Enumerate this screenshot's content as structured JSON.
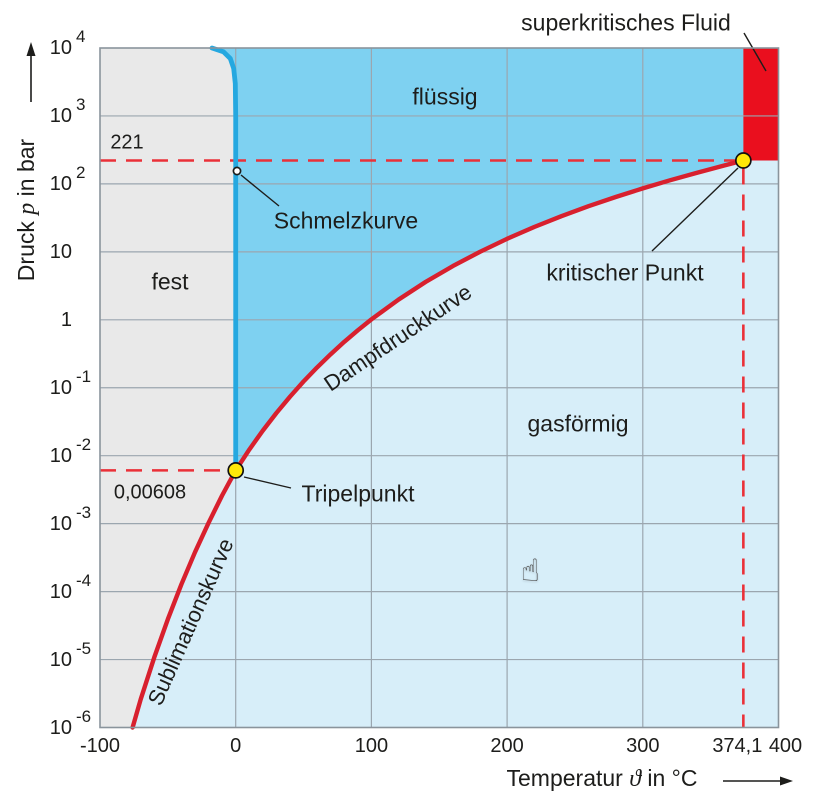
{
  "colors": {
    "solid_region": "#e9e9e9",
    "liquid_region": "#7ed1f1",
    "gas_region": "#d7eef9",
    "supercritical_region": "#ea0f1e",
    "melting_curve": "#25a8e0",
    "red_curve": "#d8202e",
    "dashed_reference": "#ea3038",
    "point_fill": "#ffe808",
    "grid": "#9ba6af",
    "plot_border": "#8a949c",
    "text": "#1d1d1b"
  },
  "chart_data": {
    "type": "line",
    "description_regions": [
      {
        "key": "solid",
        "label": "fest"
      },
      {
        "key": "liquid",
        "label": "flüssig"
      },
      {
        "key": "gas",
        "label": "gasförmig"
      },
      {
        "key": "supercritical",
        "label": "superkritisches Fluid"
      }
    ],
    "x_axis": {
      "label_pre": "Temperatur ",
      "label_var": "ϑ",
      "label_post": " in °C",
      "min": -100,
      "max": 400,
      "ticks": [
        {
          "v": -100,
          "label": "-100",
          "dx": 0
        },
        {
          "v": 0,
          "label": "0",
          "dx": 0
        },
        {
          "v": 100,
          "label": "100",
          "dx": 0
        },
        {
          "v": 200,
          "label": "200",
          "dx": 0
        },
        {
          "v": 300,
          "label": "300",
          "dx": 0
        },
        {
          "v": 374.1,
          "label": "374,1",
          "dx": -6
        },
        {
          "v": 400,
          "label": "400",
          "dx": 7
        }
      ],
      "grid": [
        0,
        100,
        200,
        300
      ]
    },
    "y_axis": {
      "label_pre": "Druck ",
      "label_var": "p",
      "label_post": " in bar",
      "scale": "log",
      "min_exp": -6,
      "max_exp": 4,
      "ticks": [
        {
          "e": 4,
          "base": "10",
          "exp": "4"
        },
        {
          "e": 3,
          "base": "10",
          "exp": "3"
        },
        {
          "e": 2,
          "base": "10",
          "exp": "2"
        },
        {
          "e": 1,
          "base": "10",
          "exp": ""
        },
        {
          "e": 0,
          "base": "1",
          "exp": ""
        },
        {
          "e": -1,
          "base": "10",
          "exp": "-1"
        },
        {
          "e": -2,
          "base": "10",
          "exp": "-2"
        },
        {
          "e": -3,
          "base": "10",
          "exp": "-3"
        },
        {
          "e": -4,
          "base": "10",
          "exp": "-4"
        },
        {
          "e": -5,
          "base": "10",
          "exp": "-5"
        },
        {
          "e": -6,
          "base": "10",
          "exp": "-6"
        }
      ],
      "grid_exps": [
        3,
        2,
        1,
        0,
        -1,
        -2,
        -3,
        -4,
        -5
      ]
    },
    "series": [
      {
        "key": "melting",
        "name": "Schmelzkurve",
        "color": "#25a8e0",
        "points": [
          [
            0.01,
            0.00608
          ],
          [
            0,
            0.1
          ],
          [
            0,
            10
          ],
          [
            0,
            1000
          ],
          [
            -0.3,
            3000
          ],
          [
            -1.5,
            5000
          ],
          [
            -4,
            7000
          ],
          [
            -9,
            8800
          ],
          [
            -17.5,
            10000
          ]
        ]
      },
      {
        "key": "vapor",
        "name": "Dampfdruckkurve",
        "color": "#d8202e",
        "points": [
          [
            0.01,
            0.00608
          ],
          [
            10,
            0.01228
          ],
          [
            20,
            0.02339
          ],
          [
            30,
            0.04246
          ],
          [
            40,
            0.07384
          ],
          [
            50,
            0.12349
          ],
          [
            60,
            0.19932
          ],
          [
            70,
            0.31176
          ],
          [
            80,
            0.47373
          ],
          [
            90,
            0.70117
          ],
          [
            100,
            1.0133
          ],
          [
            120,
            1.9854
          ],
          [
            140,
            3.6136
          ],
          [
            160,
            6.1766
          ],
          [
            180,
            10.019
          ],
          [
            200,
            15.537
          ],
          [
            220,
            23.178
          ],
          [
            240,
            33.447
          ],
          [
            260,
            46.894
          ],
          [
            280,
            64.132
          ],
          [
            300,
            85.838
          ],
          [
            320,
            112.79
          ],
          [
            340,
            145.94
          ],
          [
            360,
            186.55
          ],
          [
            374.1,
            220.64
          ]
        ]
      },
      {
        "key": "sublimation",
        "name": "Sublimationskurve",
        "color": "#d8202e",
        "points": [
          [
            -76,
            1e-06
          ],
          [
            -70,
            2.6e-06
          ],
          [
            -60,
            1.08e-05
          ],
          [
            -50,
            3.94e-05
          ],
          [
            -40,
            0.000128
          ],
          [
            -30,
            0.00038
          ],
          [
            -20,
            0.00103
          ],
          [
            -10,
            0.0026
          ],
          [
            0.01,
            0.00608
          ]
        ]
      }
    ],
    "points": [
      {
        "key": "triple",
        "label": "Tripelpunkt",
        "t": 0.01,
        "p": 0.00608
      },
      {
        "key": "critical",
        "label": "kritischer Punkt",
        "t": 374.1,
        "p": 221
      }
    ],
    "reference_lines": [
      {
        "key": "critical-pressure",
        "axis": "y",
        "value": 221,
        "label": "221"
      },
      {
        "key": "triple-pressure",
        "axis": "y",
        "value": 0.00608,
        "label": "0,00608"
      },
      {
        "key": "critical-temperature",
        "axis": "x",
        "value": 374.1,
        "label": ""
      }
    ]
  },
  "annotations": {
    "solid": "fest",
    "liquid": "flüssig",
    "gas": "gasförmig",
    "supercritical": "superkritisches Fluid",
    "melting": "Schmelzkurve",
    "vapor": "Dampfdruckkurve",
    "sublimation": "Sublimationskurve",
    "triple": "Tripelpunkt",
    "critical": "kritischer Punkt",
    "critical_pressure": "221",
    "triple_pressure": "0,00608"
  },
  "cursor": {
    "glyph": "☝",
    "name": "hand-pointer-cursor"
  }
}
